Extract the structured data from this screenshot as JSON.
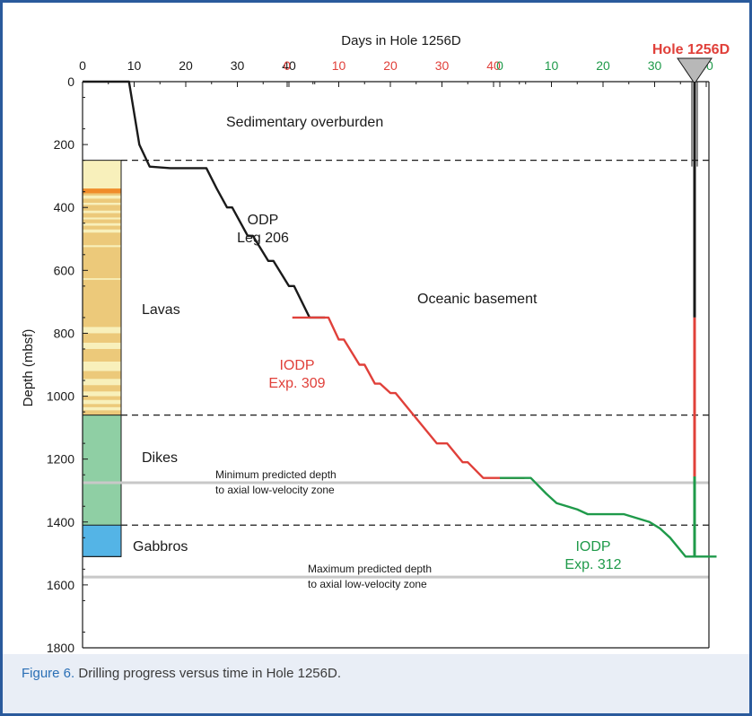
{
  "chart_data": {
    "type": "line",
    "title": "Days in Hole 1256D",
    "xlabel": "Days in Hole 1256D",
    "ylabel": "Depth (mbsf)",
    "ylim": [
      0,
      1800
    ],
    "y_ticks": [
      0,
      200,
      400,
      600,
      800,
      1000,
      1200,
      1400,
      1600,
      1800
    ],
    "x_axis_groups": [
      {
        "ticks": [
          0,
          10,
          20,
          30,
          40
        ],
        "color": "#1a1a1a"
      },
      {
        "ticks": [
          0,
          10,
          20,
          30,
          40
        ],
        "color": "#e0403a"
      },
      {
        "ticks": [
          0,
          10,
          20,
          30,
          40
        ],
        "color": "#1f9a4a"
      }
    ],
    "hole_label": "Hole 1256D",
    "series": [
      {
        "label_lines": [
          "ODP",
          "Leg 206"
        ],
        "color": "#1a1a1a",
        "points": [
          [
            0,
            0
          ],
          [
            9,
            0
          ],
          [
            10,
            100
          ],
          [
            11,
            200
          ],
          [
            13,
            270
          ],
          [
            17,
            275
          ],
          [
            24,
            275
          ],
          [
            26,
            340
          ],
          [
            28,
            400
          ],
          [
            29,
            400
          ],
          [
            32,
            490
          ],
          [
            33,
            490
          ],
          [
            36,
            570
          ],
          [
            37,
            570
          ],
          [
            40,
            650
          ],
          [
            41,
            650
          ],
          [
            44,
            750
          ],
          [
            47,
            750
          ]
        ]
      },
      {
        "label_lines": [
          "IODP",
          "Exp. 309"
        ],
        "color": "#e0403a",
        "points": [
          [
            1,
            750
          ],
          [
            8,
            750
          ],
          [
            10,
            820
          ],
          [
            11,
            820
          ],
          [
            14,
            900
          ],
          [
            15,
            900
          ],
          [
            17,
            960
          ],
          [
            18,
            960
          ],
          [
            20,
            990
          ],
          [
            21,
            990
          ],
          [
            24,
            1050
          ],
          [
            26,
            1090
          ],
          [
            28,
            1130
          ],
          [
            29,
            1150
          ],
          [
            31,
            1150
          ],
          [
            34,
            1210
          ],
          [
            35,
            1210
          ],
          [
            38,
            1260
          ],
          [
            46,
            1260
          ]
        ]
      },
      {
        "label_lines": [
          "IODP",
          "Exp. 312"
        ],
        "color": "#1f9a4a",
        "points": [
          [
            0,
            1260
          ],
          [
            6,
            1260
          ],
          [
            9,
            1310
          ],
          [
            11,
            1340
          ],
          [
            12,
            1345
          ],
          [
            15,
            1360
          ],
          [
            17,
            1375
          ],
          [
            24,
            1375
          ],
          [
            29,
            1400
          ],
          [
            31,
            1420
          ],
          [
            33,
            1450
          ],
          [
            36,
            1510
          ],
          [
            42,
            1510
          ]
        ]
      }
    ],
    "annotations": [
      {
        "text": "Sedimentary overburden"
      },
      {
        "text": "Oceanic basement"
      },
      {
        "text": "Minimum predicted depth"
      },
      {
        "text": "to axial low-velocity zone"
      },
      {
        "text": "Maximum predicted depth"
      },
      {
        "text": "to axial low-velocity zone"
      }
    ],
    "dashed_boundaries": [
      250,
      1060,
      1410
    ],
    "predicted_depths": [
      1275,
      1575
    ],
    "units": [
      {
        "name": "Lavas",
        "from": 250,
        "to": 1060,
        "color": "#ecc97a"
      },
      {
        "name": "Dikes",
        "from": 1060,
        "to": 1410,
        "color": "#8fcfa4"
      },
      {
        "name": "Gabbros",
        "from": 1410,
        "to": 1510,
        "color": "#54b4e6"
      }
    ],
    "lava_bands": [
      {
        "from": 250,
        "to": 340,
        "color": "#f8f0bb"
      },
      {
        "from": 340,
        "to": 355,
        "color": "#f08c2a"
      },
      {
        "from": 362,
        "to": 372,
        "color": "#f8f0bb"
      },
      {
        "from": 385,
        "to": 392,
        "color": "#f8f0bb"
      },
      {
        "from": 410,
        "to": 418,
        "color": "#f8f0bb"
      },
      {
        "from": 432,
        "to": 438,
        "color": "#f8f0bb"
      },
      {
        "from": 450,
        "to": 458,
        "color": "#f8f0bb"
      },
      {
        "from": 470,
        "to": 480,
        "color": "#f8f0bb"
      },
      {
        "from": 520,
        "to": 526,
        "color": "#f8f0bb"
      },
      {
        "from": 625,
        "to": 630,
        "color": "#f8f0bb"
      },
      {
        "from": 780,
        "to": 800,
        "color": "#f8f0bb"
      },
      {
        "from": 830,
        "to": 850,
        "color": "#f8f0bb"
      },
      {
        "from": 890,
        "to": 920,
        "color": "#f8f0bb"
      },
      {
        "from": 945,
        "to": 965,
        "color": "#f8f0bb"
      },
      {
        "from": 985,
        "to": 1000,
        "color": "#f8f0bb"
      },
      {
        "from": 1012,
        "to": 1025,
        "color": "#f8f0bb"
      },
      {
        "from": 1035,
        "to": 1045,
        "color": "#f8f0bb"
      }
    ],
    "hole_segments": [
      {
        "from": 0,
        "to": 750,
        "color": "#1a1a1a"
      },
      {
        "from": 750,
        "to": 1255,
        "color": "#e0403a"
      },
      {
        "from": 1255,
        "to": 1510,
        "color": "#1f9a4a"
      }
    ],
    "casing_depth": 270
  },
  "caption": {
    "figure_label": "Figure 6.",
    "text": " Drilling progress versus time in Hole 1256D."
  }
}
